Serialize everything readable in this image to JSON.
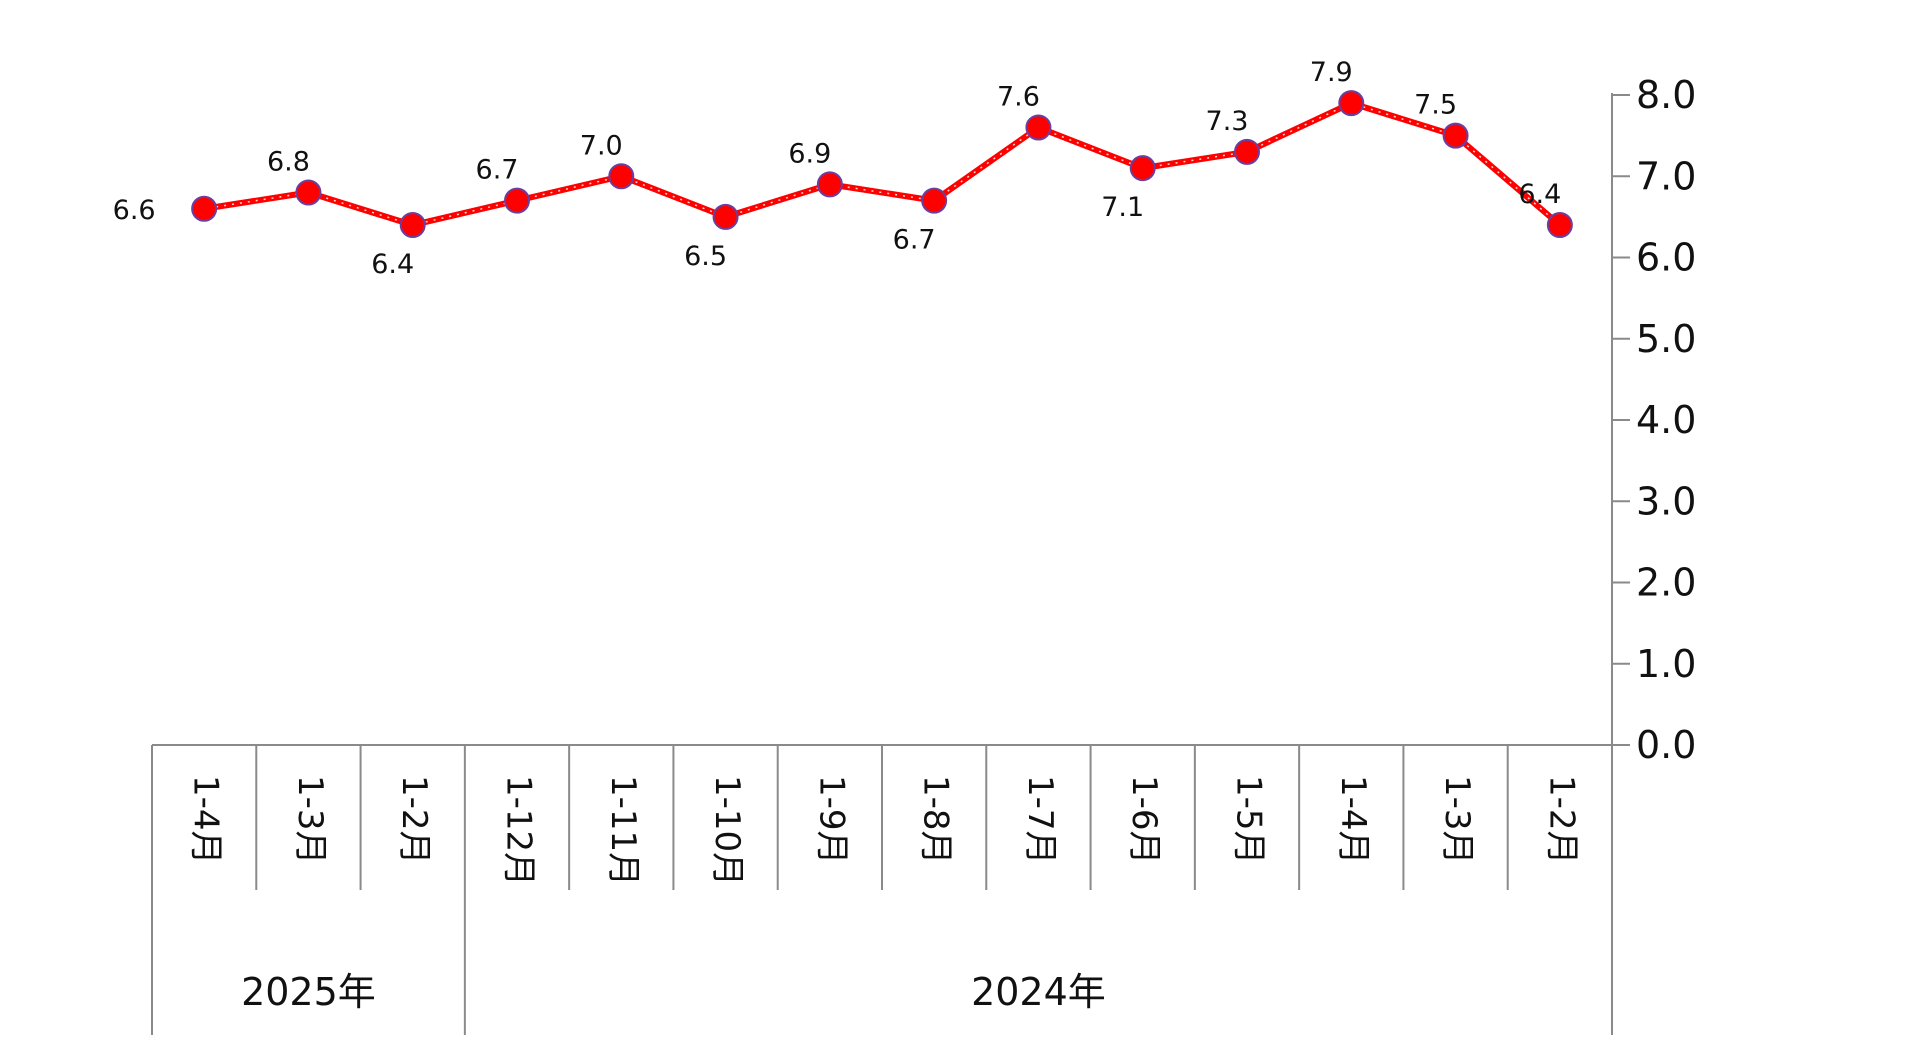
{
  "chart_data": {
    "type": "line",
    "orientation": "mirrored-horizontally",
    "x_axis": {
      "categories": [
        "1-2月",
        "1-3月",
        "1-4月",
        "1-5月",
        "1-6月",
        "1-7月",
        "1-8月",
        "1-9月",
        "1-10月",
        "1-11月",
        "1-12月",
        "1-2月",
        "1-3月",
        "1-4月"
      ],
      "groups": [
        {
          "label": "2024年",
          "count": 11
        },
        {
          "label": "2025年",
          "count": 3
        }
      ],
      "tick_label_rotation": "vertical"
    },
    "y_axis": {
      "position": "right",
      "ylim": [
        0.0,
        8.0
      ],
      "ticks": [
        "0.0",
        "1.0",
        "2.0",
        "3.0",
        "4.0",
        "5.0",
        "6.0",
        "7.0",
        "8.0"
      ]
    },
    "series": [
      {
        "values": [
          6.4,
          7.5,
          7.9,
          7.3,
          7.1,
          7.6,
          6.7,
          6.9,
          6.5,
          7.0,
          6.7,
          6.4,
          6.8,
          6.6
        ],
        "data_labels": [
          "6.4",
          "7.5",
          "7.9",
          "7.3",
          "7.1",
          "7.6",
          "6.7",
          "6.9",
          "6.5",
          "7.0",
          "6.7",
          "6.4",
          "6.8",
          "6.6"
        ],
        "line_color": "#ff0000",
        "marker_color": "#ff0000",
        "marker_edge_color": "#6a3fa0",
        "marker": "circle"
      }
    ],
    "grid": false,
    "legend": "none",
    "title": "",
    "xlabel": "",
    "ylabel": ""
  }
}
